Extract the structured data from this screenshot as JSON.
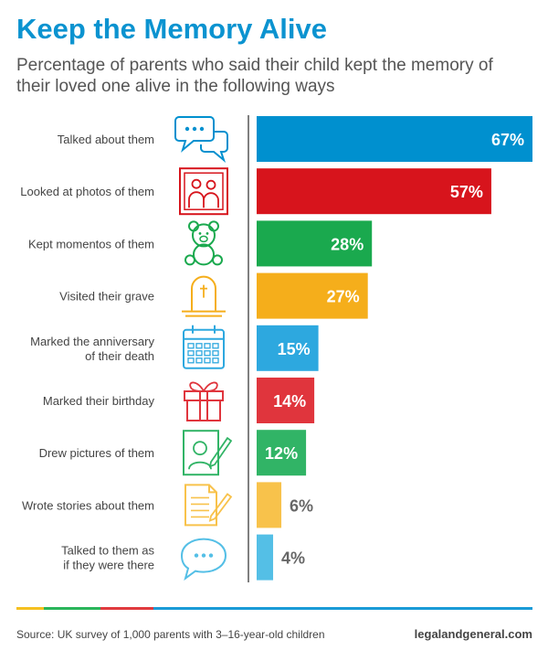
{
  "title": "Keep the Memory Alive",
  "subtitle": "Percentage of parents who said their child kept the memory of their loved one alive in the following ways",
  "source": "Source: UK survey of 1,000 parents with 3–16-year-old children",
  "site": "legalandgeneral.com",
  "chart_data": {
    "type": "bar",
    "orientation": "horizontal",
    "categories": [
      "Talked about them",
      "Looked at photos of them",
      "Kept momentos of them",
      "Visited their grave",
      "Marked the anniversary of their death",
      "Marked their birthday",
      "Drew pictures of them",
      "Wrote stories about them",
      "Talked to them as if they were there"
    ],
    "values": [
      67,
      57,
      28,
      27,
      15,
      14,
      12,
      6,
      4
    ],
    "value_labels": [
      "67%",
      "57%",
      "28%",
      "27%",
      "15%",
      "14%",
      "12%",
      "6%",
      "4%"
    ],
    "icons": [
      "speech-bubbles-icon",
      "family-photo-icon",
      "teddy-bear-icon",
      "gravestone-icon",
      "calendar-icon",
      "gift-icon",
      "drawing-icon",
      "notepad-pencil-icon",
      "speech-bubble-icon"
    ],
    "colors": [
      "#0090cf",
      "#d7141c",
      "#1aa94e",
      "#f5ae1b",
      "#2da8df",
      "#e0353d",
      "#31b466",
      "#f8c24b",
      "#54bfe6"
    ],
    "value_label_inside": [
      true,
      true,
      true,
      true,
      true,
      true,
      true,
      false,
      false
    ],
    "xlim": [
      0,
      67
    ],
    "grid": false,
    "legend": "none"
  },
  "footer_colors": [
    "#f5c020",
    "#2ab55a",
    "#e03a3e",
    "#1a9bd7"
  ]
}
